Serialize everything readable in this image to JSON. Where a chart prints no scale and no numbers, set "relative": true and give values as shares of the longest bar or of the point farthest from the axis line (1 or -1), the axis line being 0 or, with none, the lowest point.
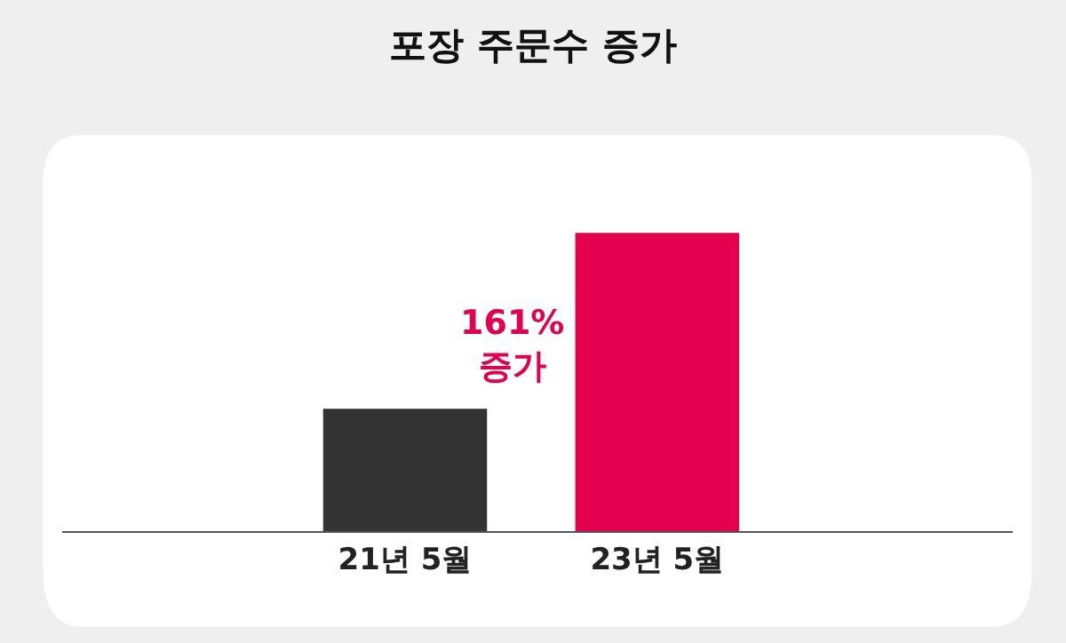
{
  "chart_data": {
    "type": "bar",
    "title": "포장 주문수 증가",
    "relative": true,
    "categories": [
      "21년 5월",
      "23년 5월"
    ],
    "values": [
      0.41,
      1
    ],
    "colors": [
      "#333333",
      "#e4004f"
    ],
    "annotations": [
      "161%\n증가"
    ],
    "legend": false
  }
}
